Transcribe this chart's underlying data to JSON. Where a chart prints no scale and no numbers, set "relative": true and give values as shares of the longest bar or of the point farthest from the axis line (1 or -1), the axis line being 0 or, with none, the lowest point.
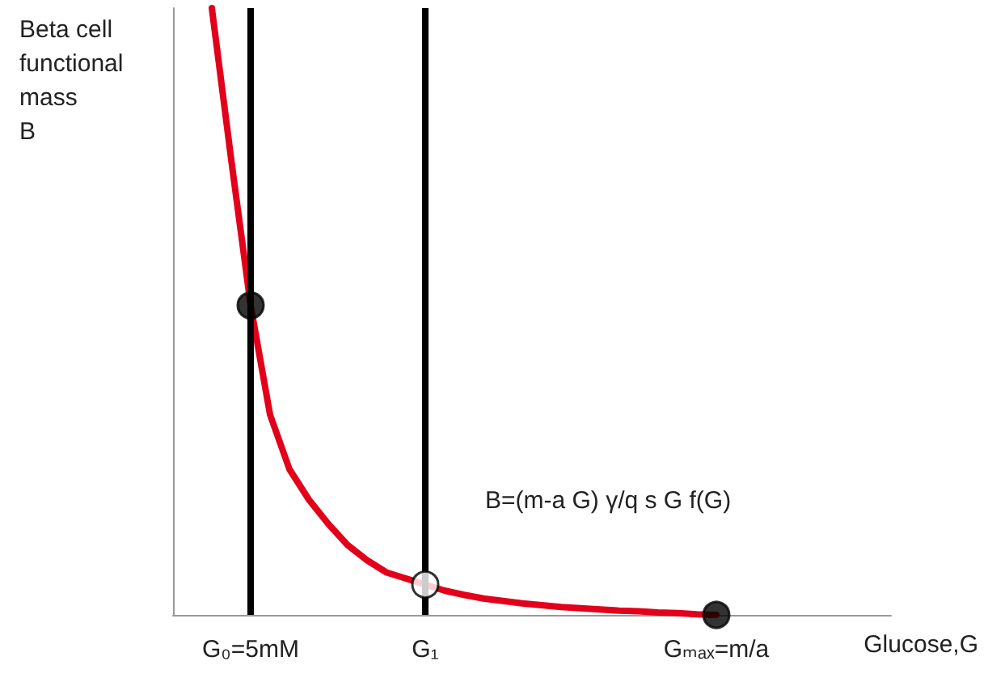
{
  "chart_data": {
    "type": "line",
    "relative": true,
    "ylabel": "Beta cell\nfunctional\nmass\nB",
    "xlabel": "Glucose,G",
    "categories": [
      null,
      null,
      null,
      null,
      "G₀=5mM",
      null,
      null,
      null,
      null,
      null,
      null,
      null,
      null,
      "G₁",
      null,
      null,
      null,
      null,
      null,
      null,
      null,
      null,
      null,
      null,
      null,
      null,
      null,
      null,
      "Gₘₐₓ=m/a",
      null,
      null,
      null,
      null,
      null,
      null,
      null,
      null,
      null
    ],
    "series": [
      {
        "color": "#e2001a",
        "marker": "none",
        "values": [
          null,
          null,
          1.0,
          0.75,
          0.51,
          0.33,
          0.24,
          0.19,
          0.15,
          0.115,
          0.09,
          0.07,
          0.06,
          0.05,
          0.04,
          0.033,
          0.027,
          0.023,
          0.019,
          0.016,
          0.013,
          0.011,
          0.009,
          0.007,
          0.006,
          0.004,
          0.003,
          0.001,
          0,
          null,
          null,
          null,
          null,
          null,
          null,
          null,
          null,
          null
        ]
      },
      {
        "type": "scatter",
        "marker": "circle",
        "x": [
          "G₀=5mM",
          "G₁",
          "Gₘₐₓ=m/a"
        ],
        "values": [
          0.51,
          0.05,
          0
        ],
        "colors": [
          "#000000",
          "#ffffff",
          "#000000"
        ]
      }
    ],
    "ref_lines": [
      {
        "axis": "x",
        "value": "G₀=5mM",
        "color": "#000000"
      },
      {
        "axis": "x",
        "value": "G₁",
        "color": "#000000"
      }
    ],
    "annotations": [
      "B=(m-a G) γ/q s G f(G)"
    ],
    "grid": false,
    "tick_labels": "x"
  }
}
